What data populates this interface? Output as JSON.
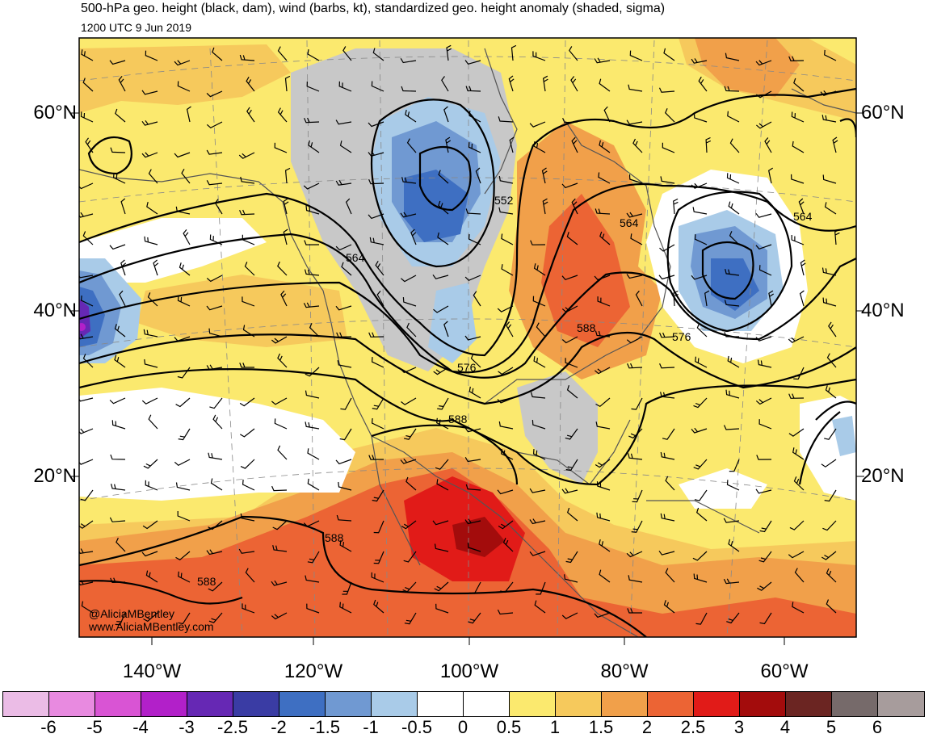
{
  "header": {
    "title": "500-hPa geo. height (black, dam), wind (barbs, kt), standardized geo. height anomaly (shaded, sigma)",
    "subtitle": "1200 UTC 9 Jun 2019"
  },
  "lat_labels": [
    "60°N",
    "40°N",
    "20°N"
  ],
  "lon_labels": [
    "140°W",
    "120°W",
    "100°W",
    "80°W",
    "60°W"
  ],
  "contour_labels": [
    "552",
    "564",
    "564",
    "564",
    "576",
    "576",
    "588",
    "588",
    "588",
    "588"
  ],
  "credits": [
    "@AliciaMBentley",
    "www.AliciaMBentley.com"
  ],
  "colorbar": {
    "ticks": [
      "-6",
      "-5",
      "-4",
      "-3",
      "-2.5",
      "-2",
      "-1.5",
      "-1",
      "-0.5",
      "0",
      "0.5",
      "1",
      "1.5",
      "2",
      "2.5",
      "3",
      "4",
      "5",
      "6"
    ],
    "colors": [
      "#ebbce6",
      "#e88ae0",
      "#d954d4",
      "#b220c9",
      "#6628b4",
      "#3a3ca4",
      "#3e6fc2",
      "#7099d2",
      "#a9cbe8",
      "#ffffff",
      "#ffffff",
      "#fbe96e",
      "#f6c95c",
      "#f1a04a",
      "#ec6434",
      "#e11b18",
      "#a30c0c",
      "#6b2522",
      "#766a6a",
      "#a79c9c"
    ]
  },
  "colors": {
    "land_line": "#555555",
    "contour": "#000000",
    "neg_gray": "#c8c8c8"
  }
}
